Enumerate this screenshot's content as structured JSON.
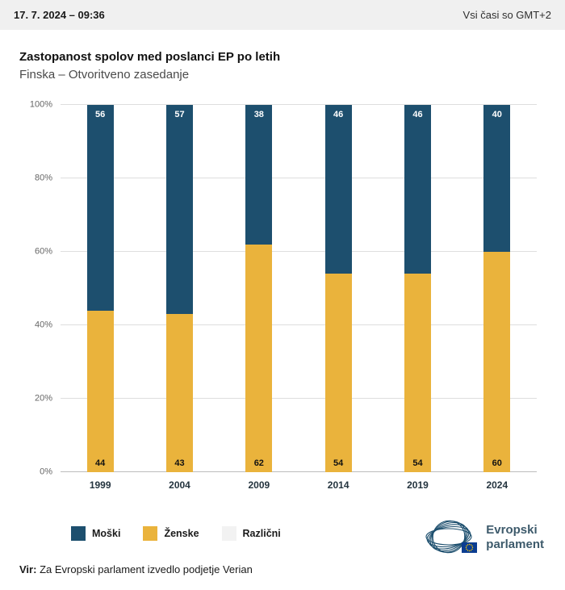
{
  "header": {
    "datetime": "17. 7. 2024 – 09:36",
    "timezone_note": "Vsi časi so GMT+2"
  },
  "title": "Zastopanost spolov med poslanci EP po letih",
  "subtitle": "Finska – Otvoritveno zasedanje",
  "chart_data": {
    "type": "bar",
    "stacked": true,
    "percent_stacked": true,
    "categories": [
      "1999",
      "2004",
      "2009",
      "2014",
      "2019",
      "2024"
    ],
    "series": [
      {
        "name": "Moški",
        "color": "#1d4f6e",
        "values": [
          56,
          57,
          38,
          46,
          46,
          40
        ]
      },
      {
        "name": "Ženske",
        "color": "#eab33c",
        "values": [
          44,
          43,
          62,
          54,
          54,
          60
        ]
      },
      {
        "name": "Različni",
        "color": "#f2f2f2",
        "values": [
          0,
          0,
          0,
          0,
          0,
          0
        ]
      }
    ],
    "title": "Zastopanost spolov med poslanci EP po letih",
    "xlabel": "",
    "ylabel": "",
    "ylim": [
      0,
      100
    ],
    "yticks": [
      "0%",
      "20%",
      "40%",
      "60%",
      "80%",
      "100%"
    ],
    "grid": true,
    "legend_position": "bottom"
  },
  "legend": {
    "items": [
      {
        "label": "Moški",
        "color": "#1d4f6e"
      },
      {
        "label": "Ženske",
        "color": "#eab33c"
      },
      {
        "label": "Različni",
        "color": "#f2f2f2"
      }
    ]
  },
  "logo": {
    "line1": "Evropski",
    "line2": "parlament"
  },
  "source": {
    "prefix": "Vir:",
    "text": "Za Evropski parlament izvedlo podjetje Verian"
  }
}
